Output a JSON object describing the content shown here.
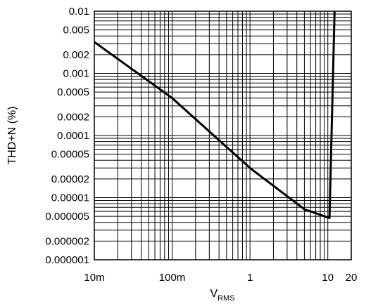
{
  "chart_data": {
    "type": "line",
    "title": "",
    "xlabel": {
      "main": "V",
      "subscript": "RMS"
    },
    "ylabel": "THD+N (%)",
    "x_scale": "log",
    "y_scale": "log",
    "xlim": [
      0.01,
      20
    ],
    "ylim": [
      1e-06,
      0.01
    ],
    "grid": true,
    "x_ticks": [
      {
        "value": 0.01,
        "label": "10m"
      },
      {
        "value": 0.1,
        "label": "100m"
      },
      {
        "value": 1,
        "label": "1"
      },
      {
        "value": 10,
        "label": "10"
      },
      {
        "value": 20,
        "label": "20"
      }
    ],
    "y_ticks": [
      {
        "value": 0.01,
        "label": "0.01"
      },
      {
        "value": 0.005,
        "label": "0.005"
      },
      {
        "value": 0.002,
        "label": "0.002"
      },
      {
        "value": 0.001,
        "label": "0.001"
      },
      {
        "value": 0.0005,
        "label": "0.0005"
      },
      {
        "value": 0.0002,
        "label": "0.0002"
      },
      {
        "value": 0.0001,
        "label": "0.0001"
      },
      {
        "value": 5e-05,
        "label": "0.00005"
      },
      {
        "value": 2e-05,
        "label": "0.00002"
      },
      {
        "value": 1e-05,
        "label": "0.00001"
      },
      {
        "value": 5e-06,
        "label": "0.000005"
      },
      {
        "value": 2e-06,
        "label": "0.000002"
      },
      {
        "value": 1e-06,
        "label": "0.000001"
      }
    ],
    "series": [
      {
        "color": "#000000",
        "points": [
          {
            "x": 0.01,
            "y": 0.0032
          },
          {
            "x": 0.1,
            "y": 0.0004
          },
          {
            "x": 1,
            "y": 3e-05
          },
          {
            "x": 5,
            "y": 6.5e-06
          },
          {
            "x": 10.5,
            "y": 4.7e-06
          },
          {
            "x": 12.2,
            "y": 0.01
          }
        ]
      }
    ]
  }
}
